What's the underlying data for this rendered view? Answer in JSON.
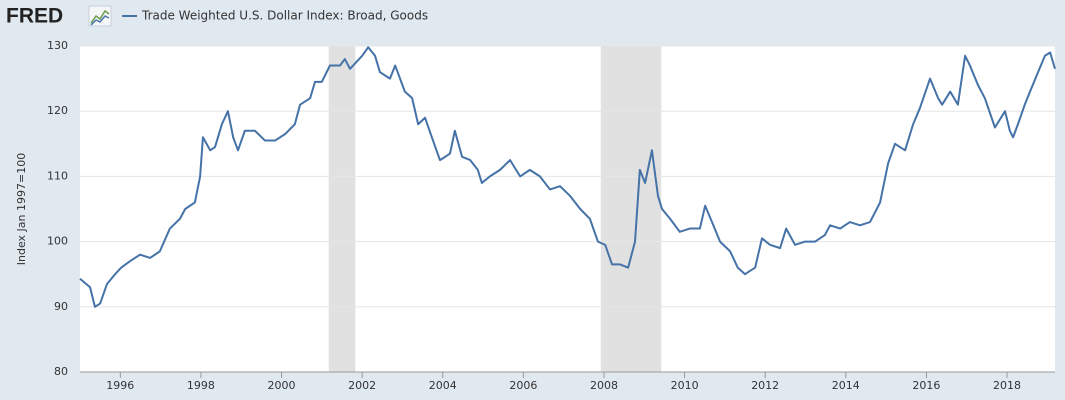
{
  "logo": "FRED",
  "chart_data": {
    "type": "line",
    "y_label": "Index Jan 1997=100",
    "series": [
      {
        "name": "Trade Weighted U.S. Dollar Index: Broad, Goods",
        "color": "#4572a7",
        "x": [
          1995.0,
          1995.25,
          1995.37,
          1995.5,
          1995.67,
          1995.87,
          1996.02,
          1996.24,
          1996.49,
          1996.74,
          1996.98,
          1997.23,
          1997.48,
          1997.61,
          1997.85,
          1997.98,
          1998.05,
          1998.23,
          1998.35,
          1998.52,
          1998.67,
          1998.8,
          1998.92,
          1999.09,
          1999.34,
          1999.59,
          1999.84,
          2000.09,
          2000.33,
          2000.46,
          2000.71,
          2000.83,
          2001.0,
          2001.2,
          2001.45,
          2001.57,
          2001.7,
          2001.85,
          2002.0,
          2002.15,
          2002.32,
          2002.44,
          2002.69,
          2002.82,
          2003.06,
          2003.24,
          2003.39,
          2003.56,
          2003.73,
          2003.93,
          2004.06,
          2004.18,
          2004.3,
          2004.48,
          2004.68,
          2004.87,
          2004.97,
          2005.17,
          2005.42,
          2005.67,
          2005.92,
          2006.16,
          2006.41,
          2006.66,
          2006.91,
          2007.16,
          2007.41,
          2007.65,
          2007.85,
          2008.03,
          2008.2,
          2008.4,
          2008.6,
          2008.77,
          2008.89,
          2009.02,
          2009.19,
          2009.34,
          2009.44,
          2009.64,
          2009.88,
          2010.13,
          2010.38,
          2010.51,
          2010.68,
          2010.88,
          2011.13,
          2011.32,
          2011.5,
          2011.62,
          2011.75,
          2011.92,
          2012.12,
          2012.37,
          2012.52,
          2012.74,
          2012.99,
          2013.24,
          2013.48,
          2013.61,
          2013.86,
          2014.1,
          2014.35,
          2014.6,
          2014.85,
          2015.05,
          2015.22,
          2015.47,
          2015.67,
          2015.84,
          2016.09,
          2016.29,
          2016.39,
          2016.59,
          2016.78,
          2016.96,
          2017.08,
          2017.28,
          2017.45,
          2017.7,
          2017.95,
          2018.07,
          2018.15,
          2018.27,
          2018.44,
          2018.57,
          2018.77,
          2018.94,
          2019.07,
          2019.19
        ],
        "values": [
          94.3,
          93,
          90,
          90.5,
          93.5,
          95,
          96,
          97,
          98,
          97.5,
          98.5,
          102,
          103.5,
          105,
          106,
          110,
          116,
          114,
          114.5,
          118,
          120,
          116,
          114,
          117,
          117,
          115.5,
          115.5,
          116.5,
          118,
          121,
          122,
          124.5,
          124.5,
          127,
          127,
          128,
          126.5,
          127.5,
          128.5,
          129.8,
          128.5,
          126,
          125,
          127,
          123,
          122,
          118,
          119,
          116,
          112.5,
          113,
          113.5,
          117,
          113,
          112.5,
          111,
          109,
          110,
          111,
          112.5,
          110,
          111,
          110,
          108,
          108.5,
          107,
          105,
          103.5,
          100,
          99.5,
          96.5,
          96.5,
          96,
          100,
          111,
          109,
          114,
          107,
          105,
          103.5,
          101.5,
          102,
          102,
          105.5,
          103,
          100,
          98.5,
          96,
          95,
          95.5,
          96,
          100.5,
          99.5,
          99,
          102,
          99.5,
          100,
          100,
          101,
          102.5,
          102,
          103,
          102.5,
          103,
          106,
          112,
          115,
          114,
          118,
          120.5,
          125,
          122,
          121,
          123,
          121,
          128.5,
          127,
          124,
          122,
          117.5,
          120,
          117,
          116,
          118,
          121,
          123,
          126,
          128.5,
          129,
          126.5
        ]
      }
    ],
    "xlim": [
      1995.0,
      2019.19
    ],
    "xticks": [
      1996,
      1998,
      2000,
      2002,
      2004,
      2006,
      2008,
      2010,
      2012,
      2014,
      2016,
      2018
    ],
    "ylim": [
      80,
      130
    ],
    "yticks": [
      80,
      90,
      100,
      110,
      120,
      130
    ],
    "grid": true,
    "recessions": [
      [
        2001.17,
        2001.83
      ],
      [
        2007.92,
        2009.42
      ]
    ],
    "recession_color": "#e1e1e1"
  }
}
